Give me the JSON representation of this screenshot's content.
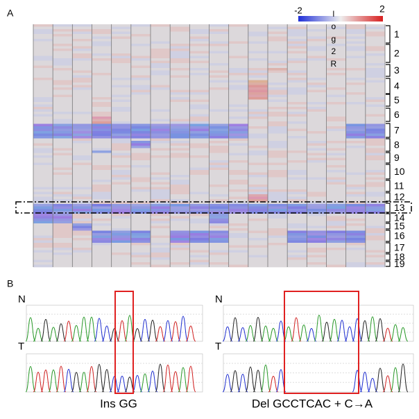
{
  "panel_a": {
    "label": "A",
    "colorbar_min": "-2",
    "colorbar_max": "2",
    "colorbar_title": "log2R",
    "chromosomes": [
      "1",
      "2",
      "3",
      "4",
      "5",
      "6",
      "7",
      "8",
      "9",
      "10",
      "11",
      "12",
      "13",
      "14",
      "15",
      "16",
      "17",
      "18",
      "19"
    ]
  },
  "panel_b": {
    "label": "B",
    "left": {
      "top_label": "N",
      "bottom_label": "T",
      "caption": "Ins GG"
    },
    "right": {
      "top_label": "N",
      "bottom_label": "T",
      "caption": "Del GCCTCAC + C→A"
    }
  }
}
